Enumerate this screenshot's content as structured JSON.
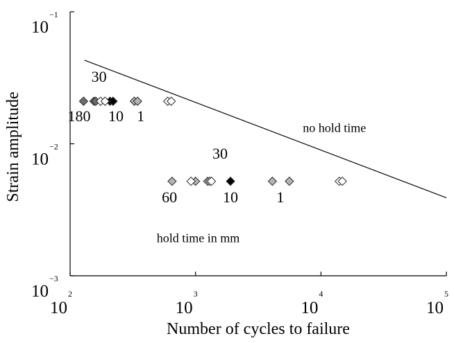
{
  "chart_data": {
    "type": "scatter",
    "xscale": "log",
    "yscale": "log",
    "xlim": [
      100,
      100000
    ],
    "ylim": [
      0.001,
      0.1
    ],
    "xlabel": "Number of cycles to failure",
    "ylabel": "Strain amplitude",
    "x_ticks": [
      {
        "base": "10",
        "exp": "2"
      },
      {
        "base": "10",
        "exp": "3"
      },
      {
        "base": "10",
        "exp": "4"
      },
      {
        "base": "10",
        "exp": "5"
      }
    ],
    "y_ticks": [
      {
        "base": "10",
        "exp": "−3"
      },
      {
        "base": "10",
        "exp": "−2"
      },
      {
        "base": "10",
        "exp": "−1"
      }
    ],
    "grid": false,
    "legend": "none",
    "line": {
      "x": [
        130,
        100000
      ],
      "y": [
        0.043,
        0.0039
      ]
    },
    "series": [
      {
        "style": "dark",
        "points": [
          [
            128,
            0.021
          ],
          [
            155,
            0.021
          ],
          [
            160,
            0.021
          ]
        ]
      },
      {
        "style": "black",
        "points": [
          [
            208,
            0.021
          ],
          [
            220,
            0.021
          ],
          [
            1900,
            0.0052
          ]
        ]
      },
      {
        "style": "gray",
        "points": [
          [
            325,
            0.021
          ],
          [
            345,
            0.021
          ],
          [
            650,
            0.0052
          ],
          [
            1000,
            0.0052
          ],
          [
            1250,
            0.0052
          ],
          [
            4100,
            0.0052
          ],
          [
            5600,
            0.0052
          ]
        ]
      },
      {
        "style": "open",
        "points": [
          [
            175,
            0.021
          ],
          [
            190,
            0.021
          ],
          [
            600,
            0.021
          ],
          [
            640,
            0.021
          ],
          [
            920,
            0.0052
          ],
          [
            1300,
            0.0052
          ],
          [
            1340,
            0.0052
          ],
          [
            14000,
            0.0052
          ],
          [
            14800,
            0.0052
          ]
        ]
      }
    ],
    "annotations": [
      {
        "text": "30",
        "x": 170,
        "y": 0.0295
      },
      {
        "text": "180",
        "x": 118,
        "y": 0.0148
      },
      {
        "text": "10",
        "x": 232,
        "y": 0.0148
      },
      {
        "text": "1",
        "x": 365,
        "y": 0.0148
      },
      {
        "text": "no hold time",
        "x": 12800,
        "y": 0.0123
      },
      {
        "text": "30",
        "x": 1570,
        "y": 0.0077
      },
      {
        "text": "60",
        "x": 620,
        "y": 0.0036
      },
      {
        "text": "10",
        "x": 1900,
        "y": 0.0036
      },
      {
        "text": "1",
        "x": 4750,
        "y": 0.0036
      },
      {
        "text": "hold time in mm",
        "x": 1050,
        "y": 0.0018
      }
    ],
    "colors": {
      "dark": "#6e6e6e",
      "black": "#000000",
      "gray": "#b4b4b4",
      "open": "#ffffff",
      "edge": "#2a2a2a"
    }
  }
}
